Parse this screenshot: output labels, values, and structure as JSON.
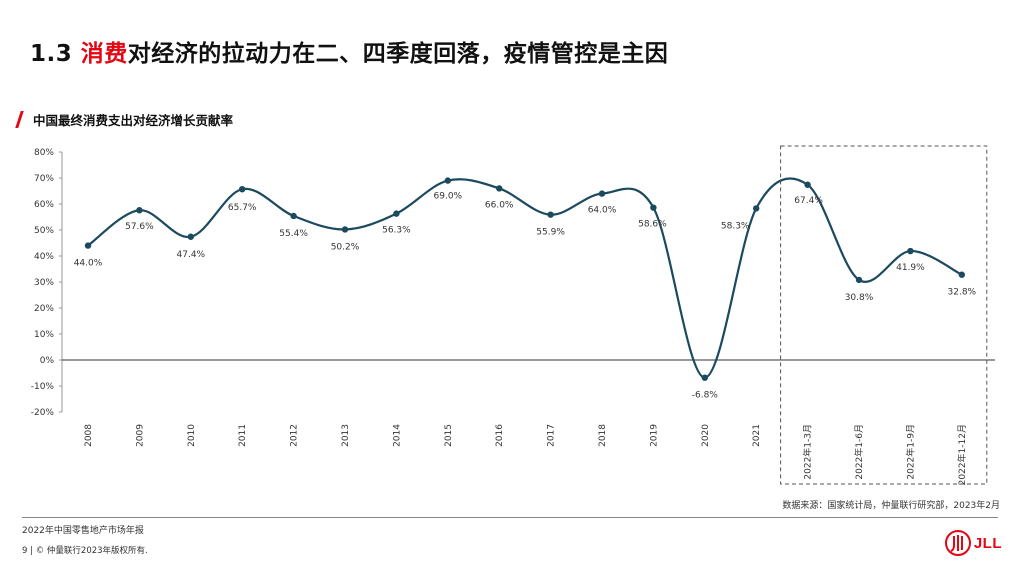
{
  "header": {
    "number": "1.3",
    "title_accent": "消费",
    "title_rest": "对经济的拉动力在二、四季度回落，疫情管控是主因"
  },
  "chart_data": {
    "type": "line",
    "title": "中国最终消费支出对经济增长贡献率",
    "categories": [
      "2008",
      "2009",
      "2010",
      "2011",
      "2012",
      "2013",
      "2014",
      "2015",
      "2016",
      "2017",
      "2018",
      "2019",
      "2020",
      "2021",
      "2022年1-3月",
      "2022年1-6月",
      "2022年1-9月",
      "2022年1-12月"
    ],
    "values": [
      44.0,
      57.6,
      47.4,
      65.7,
      55.4,
      50.2,
      56.3,
      69.0,
      66.0,
      55.9,
      64.0,
      58.6,
      -6.8,
      58.3,
      67.4,
      30.8,
      41.9,
      32.8
    ],
    "value_labels": [
      "44.0%",
      "57.6%",
      "47.4%",
      "65.7%",
      "55.4%",
      "50.2%",
      "56.3%",
      "69.0%",
      "66.0%",
      "55.9%",
      "64.0%",
      "58.6%",
      "-6.8%",
      "58.3%",
      "67.4%",
      "30.8%",
      "41.9%",
      "32.8%"
    ],
    "yticks": [
      "80%",
      "70%",
      "60%",
      "50%",
      "40%",
      "30%",
      "20%",
      "10%",
      "0%",
      "-10%",
      "-20%"
    ],
    "ylim": [
      -20,
      80
    ],
    "grid": false,
    "highlight_range": [
      "2022年1-3月",
      "2022年1-12月"
    ],
    "line_color": "#1b4a5e"
  },
  "source": "数据来源：国家统计局，仲量联行研究部，2023年2月",
  "footer": {
    "report": "2022年中国零售地产市场年报",
    "page": "9",
    "copyright": "© 仲量联行2023年版权所有."
  },
  "logo": {
    "text": "JLL",
    "icon": "jll-logo-icon",
    "color": "#e30613"
  }
}
